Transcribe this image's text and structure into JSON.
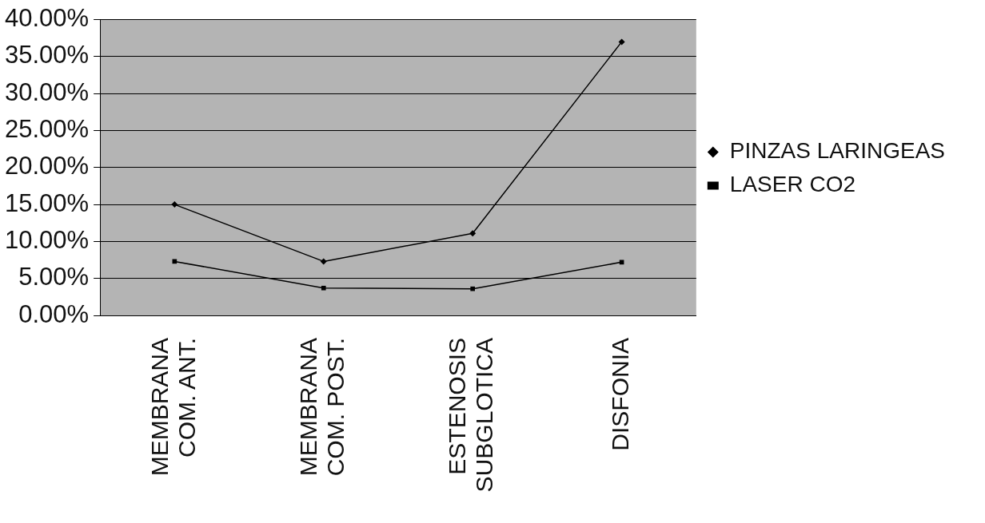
{
  "chart_data": {
    "type": "line",
    "categories": [
      "MEMBRANA COM. ANT.",
      "MEMBRANA COM. POST.",
      "ESTENOSIS SUBGLOTICA",
      "DISFONIA"
    ],
    "series": [
      {
        "name": "PINZAS LARINGEAS",
        "color": "#000000",
        "marker": "diamond",
        "values": [
          15.0,
          7.3,
          11.1,
          37.0
        ]
      },
      {
        "name": "LASER CO2",
        "color": "#000000",
        "marker": "square",
        "values": [
          7.3,
          3.7,
          3.6,
          7.2
        ]
      }
    ],
    "ylim": [
      0,
      40
    ],
    "yticks": [
      {
        "value": 0,
        "label": "0.00%"
      },
      {
        "value": 5,
        "label": "5.00%"
      },
      {
        "value": 10,
        "label": "10.00%"
      },
      {
        "value": 15,
        "label": "15.00%"
      },
      {
        "value": 20,
        "label": "20.00%"
      },
      {
        "value": 25,
        "label": "25.00%"
      },
      {
        "value": 30,
        "label": "30.00%"
      },
      {
        "value": 35,
        "label": "35.00%"
      },
      {
        "value": 40,
        "label": "40.00%"
      }
    ],
    "grid": "y",
    "legend": "right",
    "line_style": "solid"
  }
}
